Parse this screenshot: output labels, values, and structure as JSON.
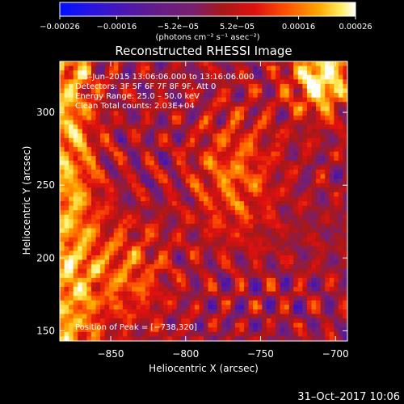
{
  "chart_data": {
    "type": "heatmap",
    "title": "Reconstructed RHESSI Image",
    "xlabel": "Heliocentric X (arcsec)",
    "ylabel": "Heliocentric Y (arcsec)",
    "xlim": [
      -884,
      -692
    ],
    "ylim": [
      143,
      335
    ],
    "x_ticks": [
      -850,
      -800,
      -750,
      -700
    ],
    "x_tick_labels": [
      "−850",
      "−800",
      "−750",
      "−700"
    ],
    "y_ticks": [
      150,
      200,
      250,
      300
    ],
    "y_tick_labels": [
      "150",
      "200",
      "250",
      "300"
    ],
    "colorbar": {
      "range": [
        -0.00026,
        0.00026
      ],
      "ticks": [
        -0.00026,
        -0.00016,
        -5.2e-05,
        5.2e-05,
        0.00016,
        0.00026
      ],
      "tick_labels": [
        "−0.00026",
        "−0.00016",
        "−5.2e−05",
        "5.2e−05",
        "0.00016",
        "0.00026"
      ],
      "unit_label": "(photons cm⁻² s⁻¹ asec⁻²)",
      "colors": [
        "#0010ff",
        "#3a10c8",
        "#5a1a90",
        "#7a1f70",
        "#a81818",
        "#e01010",
        "#ff5500",
        "#ffaa00",
        "#ffee60",
        "#ffffff"
      ]
    },
    "annotations": [
      "3–Jun–2015 13:06:06.000 to 13:16:06.000",
      "Detectors: 3F 5F 6F 7F 8F 9F, Att 0",
      "Energy Range: 25.0 – 50.0 keV",
      "Clean     Total counts: 2.03E+04",
      "Position of Peak = [−738,320]"
    ],
    "peak": {
      "x": -738,
      "y": 320
    },
    "grid": false
  },
  "footer": {
    "date": "31–Oct–2017 10:06"
  },
  "palette": {
    "background": "#000000",
    "foreground": "#ffffff"
  }
}
